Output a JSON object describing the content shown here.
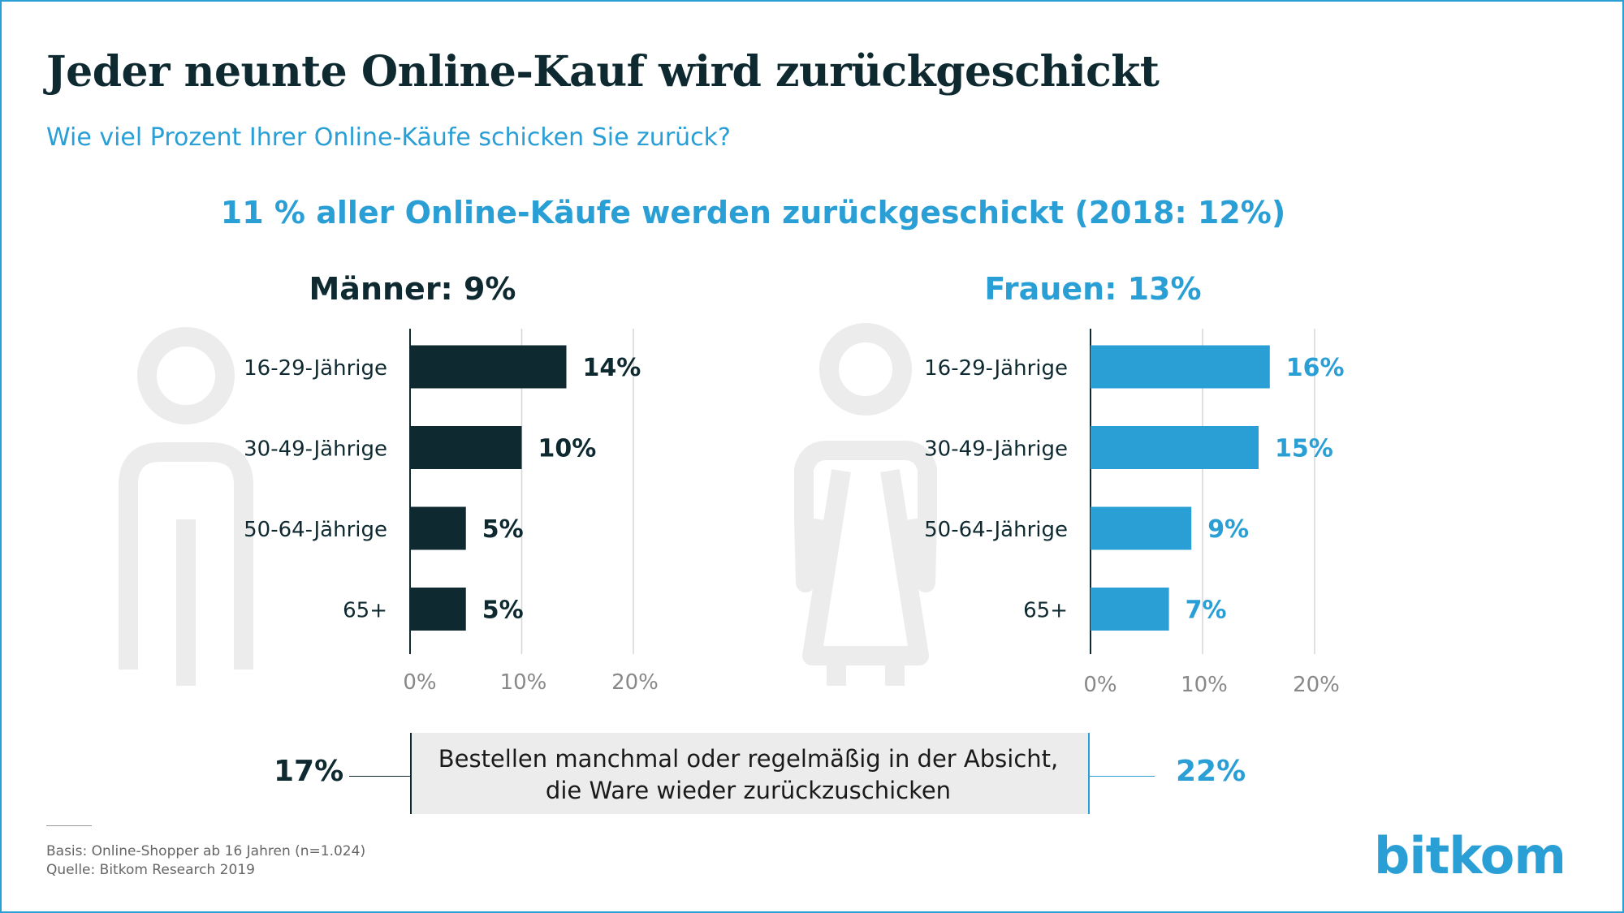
{
  "title": "Jeder neunte Online-Kauf wird zurückgeschickt",
  "subtitle": "Wie viel Prozent Ihrer Online-Käufe schicken Sie zurück?",
  "headline": "11 % aller Online-Käufe werden zurückgeschickt (2018: 12%)",
  "colors": {
    "men": "#0e2a30",
    "women": "#2a9fd6",
    "silhouette": "#ececec",
    "grid": "#d6d6d6"
  },
  "chart_data": [
    {
      "type": "bar",
      "orientation": "horizontal",
      "title": "Männer: 9%",
      "categories": [
        "16-29-Jährige",
        "30-49-Jährige",
        "50-64-Jährige",
        "65+"
      ],
      "values": [
        14,
        10,
        5,
        5
      ],
      "value_labels": [
        "14%",
        "10%",
        "5%",
        "5%"
      ],
      "xlim": [
        0,
        20
      ],
      "xticks": [
        0,
        10,
        20
      ],
      "xtick_labels": [
        "0%",
        "10%",
        "20%"
      ],
      "grid": true,
      "icon": "male-silhouette-icon"
    },
    {
      "type": "bar",
      "orientation": "horizontal",
      "title": "Frauen: 13%",
      "categories": [
        "16-29-Jährige",
        "30-49-Jährige",
        "50-64-Jährige",
        "65+"
      ],
      "values": [
        16,
        15,
        9,
        7
      ],
      "value_labels": [
        "16%",
        "15%",
        "9%",
        "7%"
      ],
      "xlim": [
        0,
        20
      ],
      "xticks": [
        0,
        10,
        20
      ],
      "xtick_labels": [
        "0%",
        "10%",
        "20%"
      ],
      "grid": true,
      "icon": "female-silhouette-icon"
    }
  ],
  "intent": {
    "line1": "Bestellen manchmal oder regelmäßig in der Absicht,",
    "line2": "die Ware wieder zurückzuschicken",
    "men_value": "17%",
    "women_value": "22%"
  },
  "footnote": {
    "basis": "Basis: Online-Shopper ab 16 Jahren (n=1.024)",
    "source": "Quelle: Bitkom Research 2019"
  },
  "logo": "bitkom"
}
